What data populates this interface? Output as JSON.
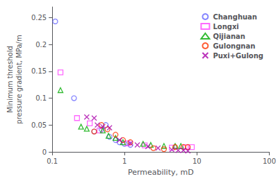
{
  "chart_data": {
    "type": "scatter",
    "xlabel": "Permeability, mD",
    "ylabel": "Minimum threshold\npressure gradient, MPa/m",
    "log": "x",
    "xlim": [
      0.1,
      100
    ],
    "xticks": [
      0.1,
      1,
      10,
      100
    ],
    "ylim": [
      0,
      0.27
    ],
    "yticks": [
      0,
      0.05,
      0.1,
      0.15,
      0.2,
      0.25
    ],
    "grid": false,
    "legend": "upper right",
    "series": [
      {
        "name": "Changhuan",
        "color": "#6666ff",
        "marker": "circle",
        "x": [
          0.11,
          0.2,
          0.38,
          0.48,
          0.55,
          0.62,
          0.75,
          0.85,
          1.0,
          1.2
        ],
        "values": [
          0.243,
          0.1,
          0.038,
          0.042,
          0.05,
          0.028,
          0.022,
          0.018,
          0.015,
          0.013
        ]
      },
      {
        "name": "Longxi",
        "color": "#ff44ff",
        "marker": "square",
        "x": [
          0.13,
          0.22,
          0.33,
          0.45,
          1.1,
          1.9,
          4.5,
          7.0,
          8.5
        ],
        "values": [
          0.148,
          0.063,
          0.053,
          0.04,
          0.016,
          0.012,
          0.008,
          0.009,
          0.009
        ]
      },
      {
        "name": "Qijianan",
        "color": "#00aa00",
        "marker": "triangle",
        "x": [
          0.13,
          0.25,
          0.3,
          0.5,
          0.6,
          0.75,
          0.95,
          1.8,
          2.3,
          3.5,
          5.0,
          6.0
        ],
        "values": [
          0.115,
          0.047,
          0.043,
          0.04,
          0.03,
          0.026,
          0.018,
          0.015,
          0.013,
          0.011,
          0.011,
          0.011
        ]
      },
      {
        "name": "Gulongnan",
        "color": "#ff3300",
        "marker": "circle",
        "x": [
          0.38,
          0.48,
          0.58,
          0.75,
          0.95,
          1.2,
          2.5,
          3.5,
          5.0,
          6.5,
          7.5
        ],
        "values": [
          0.038,
          0.05,
          0.042,
          0.032,
          0.022,
          0.018,
          0.007,
          0.005,
          0.009,
          0.009,
          0.009
        ]
      },
      {
        "name": "Puxi+Gulong",
        "color": "#aa00aa",
        "marker": "x",
        "x": [
          0.3,
          0.38,
          0.42,
          0.5,
          0.62,
          0.85,
          1.2,
          1.5,
          2.1,
          2.9,
          4.5,
          5.5,
          6.5,
          7.5
        ],
        "values": [
          0.065,
          0.063,
          0.05,
          0.047,
          0.045,
          0.022,
          0.016,
          0.013,
          0.01,
          0.007,
          0.004,
          0.003,
          0.003,
          0.002
        ]
      }
    ]
  }
}
